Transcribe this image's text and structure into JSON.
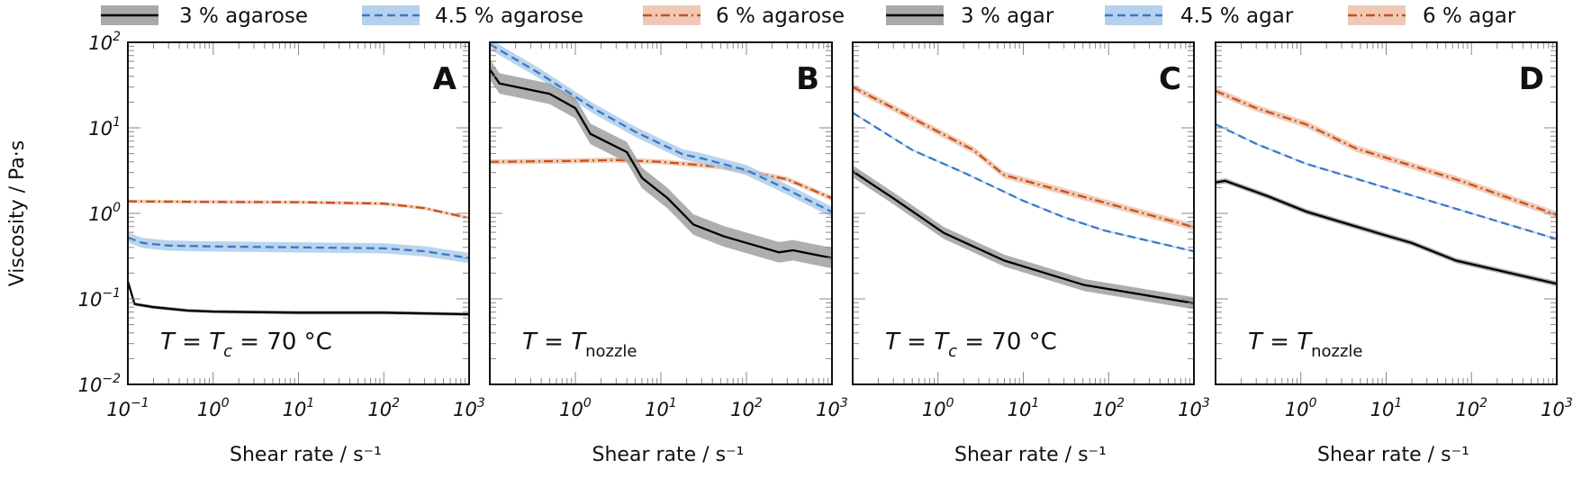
{
  "chart_data": {
    "type": "line",
    "ylabel": "Viscosity / Pa·s",
    "xlabel": "Shear rate / s⁻¹",
    "xscale": "log",
    "yscale": "log",
    "xlim": [
      0.1,
      1000
    ],
    "ylim": [
      0.01,
      100
    ],
    "y_ticks": [
      "10^2",
      "10^1",
      "10^0",
      "10^-1",
      "10^-2"
    ],
    "legend_position": "top",
    "legend": [
      {
        "label": "3 % agarose",
        "color": "#000000",
        "band": "#9a9a9a",
        "dash": "solid"
      },
      {
        "label": "4.5 % agarose",
        "color": "#3a78c9",
        "band": "#a9c9ea",
        "dash": "dashed"
      },
      {
        "label": "6 % agarose",
        "color": "#c8511c",
        "band": "#ecc0a8",
        "dash": "dashdot"
      },
      {
        "label": "3 % agar",
        "color": "#000000",
        "band": "#9a9a9a",
        "dash": "solid"
      },
      {
        "label": "4.5 % agar",
        "color": "#3a78c9",
        "band": "#a9c9ea",
        "dash": "dashed"
      },
      {
        "label": "6 % agar",
        "color": "#c8511c",
        "band": "#ecc0a8",
        "dash": "dashdot"
      }
    ],
    "panels": [
      {
        "letter": "A",
        "annotation_main": "T = T",
        "annotation_sub": "c",
        "annotation_tail": " = 70 °C",
        "x_ticks": [
          "10^-1",
          "10^0",
          "10^1",
          "10^2",
          "10^3"
        ],
        "series": [
          {
            "name": "6 % agarose",
            "style": 2,
            "x": [
              0.1,
              1,
              10,
              100,
              300,
              1000
            ],
            "y": [
              1.38,
              1.36,
              1.35,
              1.3,
              1.15,
              0.88
            ],
            "band": 0.02
          },
          {
            "name": "4.5 % agarose",
            "style": 1,
            "x": [
              0.1,
              0.15,
              0.3,
              1,
              10,
              100,
              300,
              1000
            ],
            "y": [
              0.52,
              0.45,
              0.42,
              0.41,
              0.4,
              0.39,
              0.36,
              0.3
            ],
            "band": 0.06
          },
          {
            "name": "3 % agarose",
            "style": 0,
            "x": [
              0.1,
              0.12,
              0.2,
              0.5,
              1,
              10,
              100,
              1000
            ],
            "y": [
              0.16,
              0.087,
              0.08,
              0.073,
              0.071,
              0.069,
              0.069,
              0.066
            ],
            "band": 0.02
          }
        ]
      },
      {
        "letter": "B",
        "annotation_main": "T = T",
        "annotation_sub": "nozzle",
        "annotation_tail": "",
        "x_ticks": [
          "10^0",
          "10^1",
          "10^2",
          "10^3"
        ],
        "series": [
          {
            "name": "6 % agarose",
            "style": 2,
            "x": [
              0.1,
              1,
              3,
              10,
              50,
              100,
              300,
              1000
            ],
            "y": [
              4.0,
              4.1,
              4.2,
              4.0,
              3.5,
              3.1,
              2.5,
              1.5
            ],
            "band": 0.03
          },
          {
            "name": "4.5 % agarose",
            "style": 1,
            "x": [
              0.1,
              0.4,
              1.6,
              5,
              18,
              30,
              100,
              270,
              1000
            ],
            "y": [
              95,
              42,
              17,
              9,
              4.9,
              4.4,
              3.2,
              2.0,
              1.04
            ],
            "band": 0.06
          },
          {
            "name": "3 % agarose",
            "style": 0,
            "x": [
              0.1,
              0.13,
              0.5,
              1,
              1.5,
              4,
              6,
              12,
              24,
              54,
              240,
              350,
              1000
            ],
            "y": [
              48,
              33,
              25,
              17,
              8.5,
              5.2,
              2.6,
              1.5,
              0.74,
              0.54,
              0.35,
              0.37,
              0.3
            ],
            "band": 0.12
          }
        ]
      },
      {
        "letter": "C",
        "annotation_main": "T = T",
        "annotation_sub": "c",
        "annotation_tail": " = 70 °C",
        "x_ticks": [
          "10^0",
          "10^1",
          "10^2",
          "10^3"
        ],
        "series": [
          {
            "name": "6 % agar",
            "style": 2,
            "x": [
              0.1,
              0.3,
              1.17,
              2.6,
              6,
              52,
              1000
            ],
            "y": [
              30,
              17,
              8.3,
              5.5,
              2.8,
              1.55,
              0.69
            ],
            "band": 0.04
          },
          {
            "name": "4.5 % agar",
            "style": 1,
            "x": [
              0.1,
              0.5,
              2,
              10,
              30,
              89,
              1000
            ],
            "y": [
              15,
              5.5,
              3.0,
              1.4,
              0.9,
              0.63,
              0.36
            ],
            "band": 0.01
          },
          {
            "name": "3 % agar",
            "style": 0,
            "x": [
              0.1,
              0.3,
              1.17,
              6,
              52,
              1000
            ],
            "y": [
              3.1,
              1.5,
              0.59,
              0.28,
              0.145,
              0.089
            ],
            "band": 0.07
          }
        ]
      },
      {
        "letter": "D",
        "annotation_main": "T = T",
        "annotation_sub": "nozzle",
        "annotation_tail": "",
        "x_ticks": [
          "10^0",
          "10^1",
          "10^2",
          "10^3"
        ],
        "series": [
          {
            "name": "6 % agar",
            "style": 2,
            "x": [
              0.1,
              0.3,
              1.15,
              4.5,
              66,
              1000
            ],
            "y": [
              27,
              17,
              11,
              5.7,
              2.5,
              0.96
            ],
            "band": 0.04
          },
          {
            "name": "4.5 % agar",
            "style": 1,
            "x": [
              0.1,
              0.3,
              1.15,
              17,
              1000
            ],
            "y": [
              11,
              6.5,
              3.8,
              1.7,
              0.5
            ],
            "band": 0.01
          },
          {
            "name": "3 % agar",
            "style": 0,
            "x": [
              0.1,
              0.13,
              0.4,
              1.15,
              10,
              20,
              66,
              1000
            ],
            "y": [
              2.3,
              2.4,
              1.6,
              1.05,
              0.55,
              0.45,
              0.28,
              0.15
            ],
            "band": 0.03
          }
        ]
      }
    ]
  }
}
